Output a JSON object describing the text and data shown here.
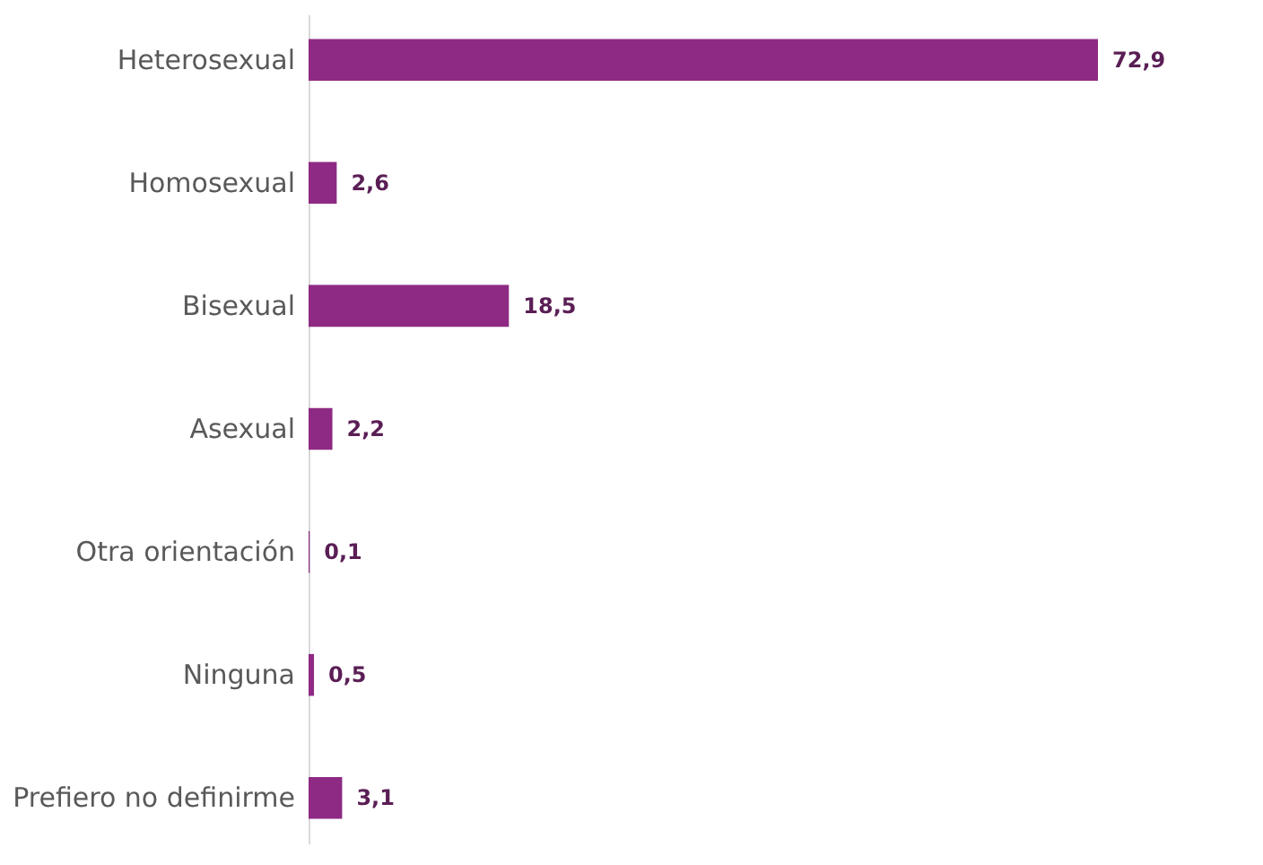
{
  "chart_data": {
    "type": "bar",
    "orientation": "horizontal",
    "categories": [
      "Heterosexual",
      "Homosexual",
      "Bisexual",
      "Asexual",
      "Otra orientación",
      "Ninguna",
      "Prefiero no definirme"
    ],
    "values": [
      72.9,
      2.6,
      18.5,
      2.2,
      0.1,
      0.5,
      3.1
    ],
    "value_labels": [
      "72,9",
      "2,6",
      "18,5",
      "2,2",
      "0,1",
      "0,5",
      "3,1"
    ],
    "color": "#8e2a84"
  }
}
